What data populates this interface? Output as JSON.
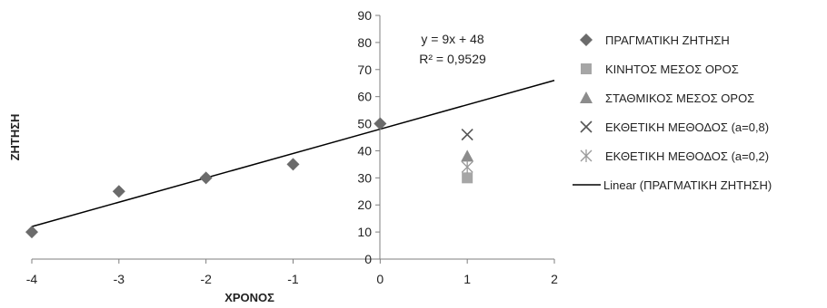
{
  "chart_data": {
    "type": "scatter",
    "xlabel": "ΧΡΟΝΟΣ",
    "ylabel": "ΖΗΤΗΣΗ",
    "xlim": [
      -4,
      2
    ],
    "ylim": [
      0,
      90
    ],
    "x_ticks": [
      "-4",
      "-3",
      "-2",
      "-1",
      "0",
      "1",
      "2"
    ],
    "y_ticks": [
      "0",
      "10",
      "20",
      "30",
      "40",
      "50",
      "60",
      "70",
      "80",
      "90"
    ],
    "grid": false,
    "legend_position": "right",
    "series": [
      {
        "name": "ΠΡΑΓΜΑΤΙΚΗ ΖΗΤΗΣΗ",
        "marker": "diamond",
        "color": "#6b6b6b",
        "points": [
          [
            -4,
            10
          ],
          [
            -3,
            25
          ],
          [
            -2,
            30
          ],
          [
            -1,
            35
          ],
          [
            0,
            50
          ]
        ]
      },
      {
        "name": "ΚΙΝΗΤΟΣ ΜΕΣΟΣ ΟΡΟΣ",
        "marker": "square",
        "color": "#a6a6a6",
        "points": [
          [
            1,
            30
          ]
        ]
      },
      {
        "name": "ΣΤΑΘΜΙΚΟΣ ΜΕΣΟΣ ΟΡΟΣ",
        "marker": "triangle",
        "color": "#8c8c8c",
        "points": [
          [
            1,
            38
          ]
        ]
      },
      {
        "name": "ΕΚΘΕΤΙΚΗ ΜΕΘΟΔΟΣ (a=0,8)",
        "marker": "x",
        "color": "#555555",
        "points": [
          [
            1,
            46
          ]
        ]
      },
      {
        "name": "ΕΚΘΕΤΙΚΗ ΜΕΘΟΔΟΣ (a=0,2)",
        "marker": "star",
        "color": "#9a9a9a",
        "points": [
          [
            1,
            34
          ]
        ]
      }
    ],
    "trendline": {
      "name": "Linear (ΠΡΑΓΜΑΤΙΚΗ ΖΗΤΗΣΗ)",
      "slope": 9,
      "intercept": 48,
      "x_range": [
        -4,
        2
      ],
      "color": "#000000",
      "equation_label": "y = 9x + 48",
      "r2_label": "R² = 0,9529"
    }
  }
}
